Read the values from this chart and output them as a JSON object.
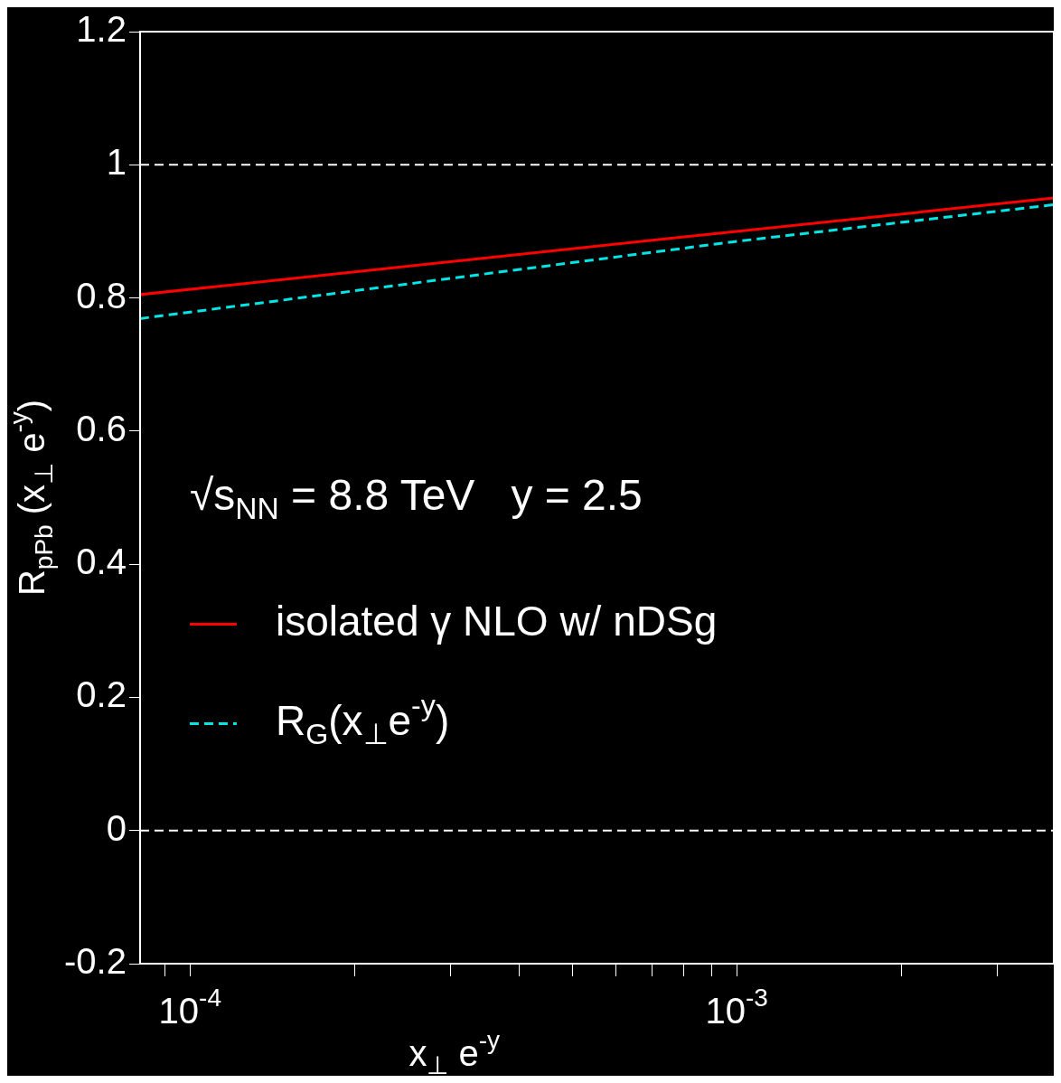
{
  "chart_data": {
    "type": "line",
    "xlabel": "x$_{⊥}$ e$^{-y}$",
    "ylabel": "R$_{pPb}$ (x$_{⊥}$ e$^{-y}$)",
    "log": "x",
    "xlim": [
      8.1e-05,
      0.0038
    ],
    "ylim": [
      -0.2,
      1.2
    ],
    "xticks": [
      {
        "value": 9e-05,
        "label": null
      },
      {
        "value": 0.0001,
        "label": "10$^{-4}$"
      },
      {
        "value": 0.0002,
        "label": null
      },
      {
        "value": 0.0003,
        "label": null
      },
      {
        "value": 0.0004,
        "label": null
      },
      {
        "value": 0.0005,
        "label": null
      },
      {
        "value": 0.0006,
        "label": null
      },
      {
        "value": 0.0007,
        "label": null
      },
      {
        "value": 0.0008,
        "label": null
      },
      {
        "value": 0.0009,
        "label": null
      },
      {
        "value": 0.001,
        "label": "10$^{-3}$"
      },
      {
        "value": 0.002,
        "label": null
      },
      {
        "value": 0.003,
        "label": null
      }
    ],
    "yticks": [
      -0.2,
      0,
      0.2,
      0.4,
      0.6,
      0.8,
      1,
      1.2
    ],
    "series": [
      {
        "name": "isolated γ NLO w/ nDSg",
        "color": "#ff0000",
        "line_style": "solid",
        "x": [
          8.1e-05,
          0.001,
          0.0038
        ],
        "values": [
          0.805,
          0.9,
          0.95
        ]
      },
      {
        "name": "R$_{G}$(x$_{⊥}$e$^{-y}$)",
        "color": "#00e5e5",
        "line_style": "dashed",
        "x": [
          8.1e-05,
          0.001,
          0.0038
        ],
        "values": [
          0.769,
          0.885,
          0.94
        ]
      }
    ],
    "ref_lines": [
      {
        "axis": "y",
        "value": 1,
        "color": "#ffffff",
        "line_style": "dashed"
      },
      {
        "axis": "y",
        "value": 0,
        "color": "#ffffff",
        "line_style": "dashed"
      }
    ],
    "annotations": [
      "√s$_{NN}$ = 8.8 TeV   y = 2.5"
    ],
    "legend": "left",
    "grid": false,
    "marker": "none"
  }
}
